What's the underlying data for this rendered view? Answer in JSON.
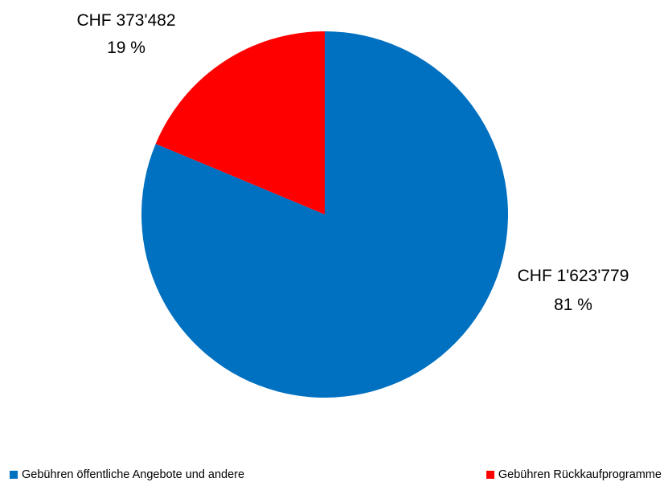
{
  "chart_data": {
    "type": "pie",
    "currency": "CHF",
    "slices": [
      {
        "name": "Gebühren Rückkaufprogramme",
        "value": 373482,
        "value_label": "CHF 373'482",
        "percent": 19,
        "percent_label": "19 %",
        "color": "#FF0000"
      },
      {
        "name": "Gebühren öffentliche Angebote und andere",
        "value": 1623779,
        "value_label": "CHF 1'623'779",
        "percent": 81,
        "percent_label": "81 %",
        "color": "#0070C0"
      }
    ],
    "legend": {
      "placement": "bottom",
      "items": [
        {
          "label": "Gebühren öffentliche Angebote und andere",
          "color": "#0070C0"
        },
        {
          "label": "Gebühren Rückkaufprogramme",
          "color": "#FF0000"
        }
      ]
    },
    "start_angle_deg": 0,
    "direction": "counterclockwise"
  }
}
